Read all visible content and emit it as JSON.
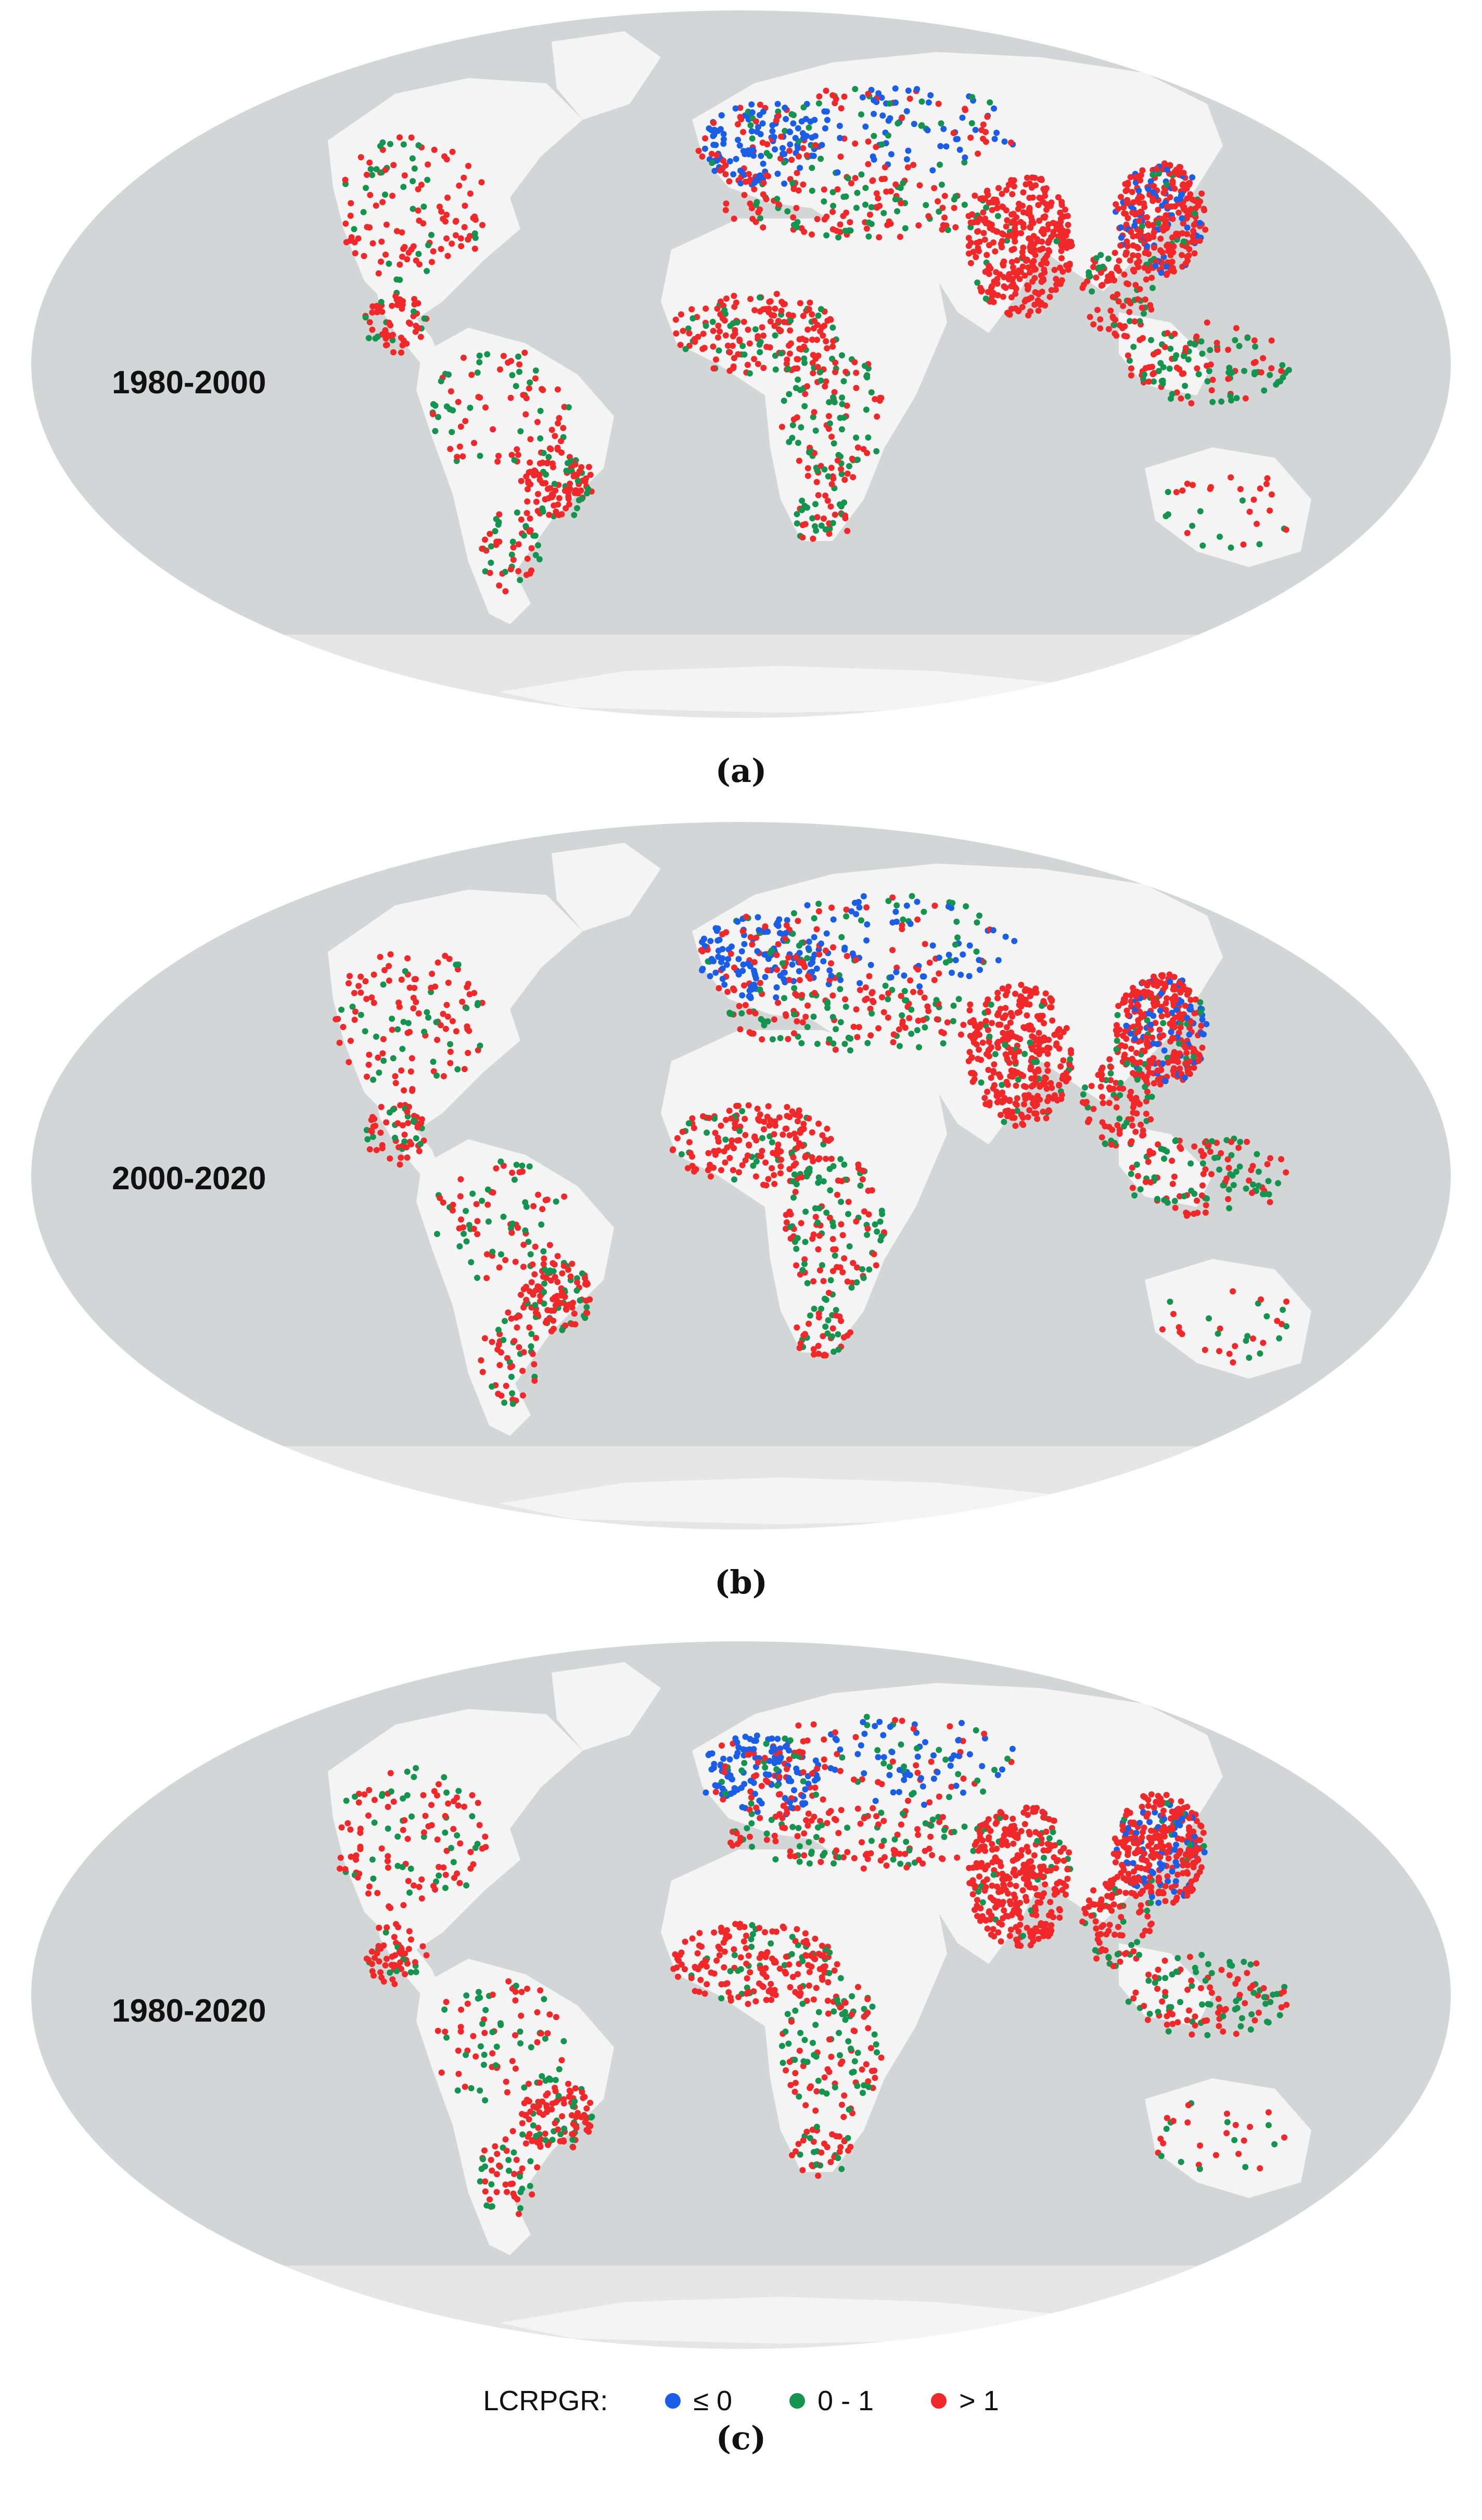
{
  "figure": {
    "panels": [
      {
        "period_label": "1980-2000",
        "caption": "(a)"
      },
      {
        "period_label": "2000-2020",
        "caption": "(b)"
      },
      {
        "period_label": "1980-2020",
        "caption": "(c)"
      }
    ],
    "legend": {
      "title": "LCRPGR:",
      "items": [
        {
          "label": "≤ 0",
          "color": "#1a5ee8"
        },
        {
          "label": "0 - 1",
          "color": "#159450"
        },
        {
          "label": "> 1",
          "color": "#f0282a"
        }
      ]
    },
    "colors": {
      "ocean": "#d2d6d6",
      "land": "#f4f4f4",
      "polar_band": "#e6e6e6",
      "background": "#ffffff"
    }
  }
}
